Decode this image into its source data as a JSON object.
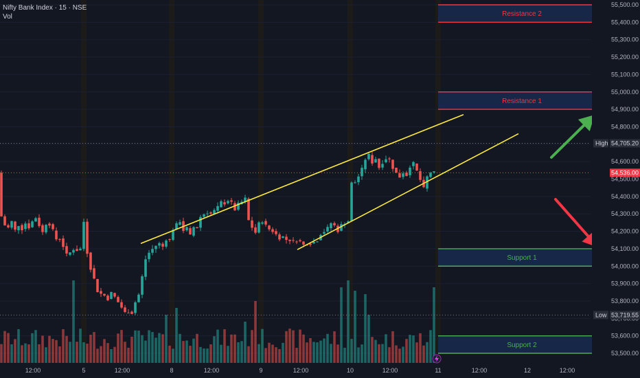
{
  "header": {
    "title": "Nifty Bank Index · 15 · NSE",
    "volume_label": "Vol"
  },
  "chart_data": {
    "type": "candlestick",
    "symbol": "Nifty Bank Index",
    "interval": "15",
    "exchange": "NSE",
    "ylim": [
      53450,
      55520
    ],
    "y_ticks": [
      "55,500.00",
      "55,400.00",
      "55,300.00",
      "55,200.00",
      "55,100.00",
      "55,000.00",
      "54,900.00",
      "54,800.00",
      "54,700.00",
      "54,600.00",
      "54,500.00",
      "54,400.00",
      "54,300.00",
      "54,200.00",
      "54,100.00",
      "54,000.00",
      "53,900.00",
      "53,800.00",
      "53,700.00",
      "53,600.00",
      "53,500.00"
    ],
    "x_ticks": [
      "12:00",
      "5",
      "12:00",
      "8",
      "12:00",
      "9",
      "12:00",
      "10",
      "12:00",
      "11",
      "12:00",
      "12",
      "12:00"
    ],
    "markers": {
      "high": {
        "label": "High",
        "value": "54,705.20"
      },
      "last": {
        "value": "54,536.00"
      },
      "low": {
        "label": "Low",
        "value": "53,719.55"
      }
    },
    "zones": [
      {
        "name": "Resistance 2",
        "low": 55400,
        "high": 55500,
        "color": "#f23645"
      },
      {
        "name": "Resistance 1",
        "low": 54900,
        "high": 55000,
        "color": "#f23645"
      },
      {
        "name": "Support 1",
        "low": 54000,
        "high": 54100,
        "color": "#4caf50"
      },
      {
        "name": "Support 2",
        "low": 53500,
        "high": 53600,
        "color": "#4caf50"
      }
    ],
    "price_path": [
      [
        0,
        54340
      ],
      [
        5,
        54280
      ],
      [
        10,
        54230
      ],
      [
        15,
        54220
      ],
      [
        20,
        54260
      ],
      [
        25,
        54200
      ],
      [
        30,
        54240
      ],
      [
        35,
        54210
      ],
      [
        40,
        54250
      ],
      [
        45,
        54220
      ],
      [
        50,
        54260
      ],
      [
        55,
        54280
      ],
      [
        60,
        54230
      ],
      [
        65,
        54190
      ],
      [
        70,
        54250
      ],
      [
        75,
        54240
      ],
      [
        80,
        54200
      ],
      [
        85,
        54150
      ],
      [
        90,
        54160
      ],
      [
        95,
        54110
      ],
      [
        100,
        54060
      ],
      [
        105,
        54080
      ],
      [
        110,
        54100
      ],
      [
        115,
        54090
      ],
      [
        120,
        54100
      ],
      [
        123,
        54300
      ],
      [
        125,
        54240
      ],
      [
        130,
        54060
      ],
      [
        135,
        53980
      ],
      [
        140,
        53920
      ],
      [
        145,
        53850
      ],
      [
        150,
        53840
      ],
      [
        155,
        53830
      ],
      [
        160,
        53810
      ],
      [
        165,
        53850
      ],
      [
        170,
        53820
      ],
      [
        175,
        53790
      ],
      [
        180,
        53760
      ],
      [
        185,
        53730
      ],
      [
        190,
        53740
      ],
      [
        195,
        53730
      ],
      [
        200,
        53800
      ],
      [
        205,
        53840
      ],
      [
        210,
        53950
      ],
      [
        215,
        54050
      ],
      [
        220,
        54080
      ],
      [
        225,
        54100
      ],
      [
        230,
        54120
      ],
      [
        235,
        54130
      ],
      [
        240,
        54110
      ],
      [
        245,
        54160
      ],
      [
        250,
        54150
      ],
      [
        255,
        54220
      ],
      [
        260,
        54240
      ],
      [
        265,
        54260
      ],
      [
        270,
        54200
      ],
      [
        275,
        54220
      ],
      [
        280,
        54170
      ],
      [
        285,
        54230
      ],
      [
        290,
        54220
      ],
      [
        295,
        54290
      ],
      [
        300,
        54300
      ],
      [
        305,
        54310
      ],
      [
        310,
        54300
      ],
      [
        315,
        54320
      ],
      [
        320,
        54340
      ],
      [
        325,
        54370
      ],
      [
        330,
        54360
      ],
      [
        335,
        54380
      ],
      [
        340,
        54360
      ],
      [
        345,
        54320
      ],
      [
        350,
        54360
      ],
      [
        355,
        54370
      ],
      [
        358,
        54440
      ],
      [
        362,
        54300
      ],
      [
        366,
        54240
      ],
      [
        370,
        54220
      ],
      [
        375,
        54190
      ],
      [
        380,
        54250
      ],
      [
        385,
        54260
      ],
      [
        390,
        54230
      ],
      [
        395,
        54210
      ],
      [
        400,
        54200
      ],
      [
        405,
        54180
      ],
      [
        410,
        54160
      ],
      [
        415,
        54170
      ],
      [
        420,
        54150
      ],
      [
        425,
        54150
      ],
      [
        430,
        54140
      ],
      [
        435,
        54150
      ],
      [
        440,
        54140
      ],
      [
        445,
        54120
      ],
      [
        450,
        54130
      ],
      [
        455,
        54130
      ],
      [
        460,
        54140
      ],
      [
        465,
        54150
      ],
      [
        470,
        54190
      ],
      [
        475,
        54200
      ],
      [
        480,
        54220
      ],
      [
        485,
        54250
      ],
      [
        490,
        54230
      ],
      [
        495,
        54200
      ],
      [
        500,
        54240
      ],
      [
        505,
        54250
      ],
      [
        510,
        54260
      ],
      [
        515,
        54500
      ],
      [
        520,
        54480
      ],
      [
        525,
        54520
      ],
      [
        530,
        54560
      ],
      [
        535,
        54620
      ],
      [
        540,
        54640
      ],
      [
        545,
        54590
      ],
      [
        550,
        54620
      ],
      [
        555,
        54560
      ],
      [
        560,
        54600
      ],
      [
        565,
        54620
      ],
      [
        570,
        54610
      ],
      [
        575,
        54560
      ],
      [
        580,
        54530
      ],
      [
        585,
        54510
      ],
      [
        590,
        54540
      ],
      [
        595,
        54520
      ],
      [
        600,
        54580
      ],
      [
        605,
        54590
      ],
      [
        610,
        54540
      ],
      [
        615,
        54490
      ],
      [
        620,
        54440
      ],
      [
        625,
        54520
      ],
      [
        630,
        54540
      ],
      [
        635,
        54536
      ]
    ],
    "channel": {
      "upper": [
        [
          205,
          54130
        ],
        [
          675,
          54870
        ]
      ],
      "lower": [
        [
          433,
          54095
        ],
        [
          755,
          54760
        ]
      ]
    }
  },
  "colors": {
    "background": "#131722",
    "up": "#26a69a",
    "down": "#ef5350",
    "channel": "#ffeb3b",
    "arrow_up": "#4caf50",
    "arrow_down": "#f23645"
  }
}
